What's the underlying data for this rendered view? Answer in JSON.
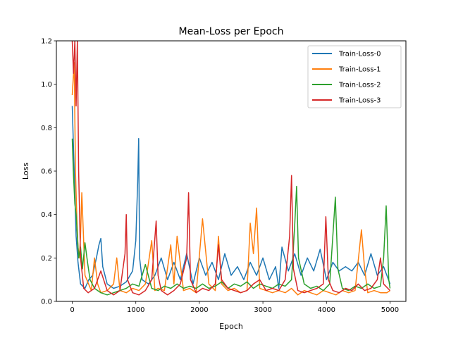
{
  "chart_data": {
    "type": "line",
    "title": "Mean-Loss per Epoch",
    "xlabel": "Epoch",
    "ylabel": "Loss",
    "xlim": [
      -250,
      5250
    ],
    "ylim": [
      0.0,
      1.2
    ],
    "x_ticks": [
      0,
      1000,
      2000,
      3000,
      4000,
      5000
    ],
    "x_tick_labels": [
      "0",
      "1000",
      "2000",
      "3000",
      "4000",
      "5000"
    ],
    "y_ticks": [
      0.0,
      0.2,
      0.4,
      0.6,
      0.8,
      1.0,
      1.2
    ],
    "y_tick_labels": [
      "0.0",
      "0.2",
      "0.4",
      "0.6",
      "0.8",
      "1.0",
      "1.2"
    ],
    "grid": false,
    "legend_position": "top-right",
    "series": [
      {
        "name": "Train-Loss-0",
        "color": "#1f77b4",
        "x": [
          0,
          30,
          60,
          90,
          130,
          200,
          260,
          320,
          380,
          420,
          450,
          480,
          550,
          650,
          750,
          850,
          950,
          1000,
          1030,
          1045,
          1060,
          1100,
          1200,
          1300,
          1400,
          1500,
          1600,
          1700,
          1800,
          1900,
          2000,
          2100,
          2200,
          2300,
          2400,
          2500,
          2600,
          2700,
          2800,
          2900,
          3000,
          3100,
          3200,
          3250,
          3300,
          3400,
          3500,
          3600,
          3700,
          3800,
          3900,
          4000,
          4100,
          4200,
          4300,
          4400,
          4500,
          4600,
          4700,
          4800,
          4900,
          5000
        ],
        "y": [
          0.9,
          0.6,
          0.3,
          0.18,
          0.08,
          0.06,
          0.1,
          0.12,
          0.2,
          0.26,
          0.29,
          0.16,
          0.08,
          0.06,
          0.07,
          0.09,
          0.14,
          0.28,
          0.55,
          0.75,
          0.2,
          0.1,
          0.08,
          0.12,
          0.2,
          0.1,
          0.18,
          0.1,
          0.22,
          0.08,
          0.2,
          0.12,
          0.18,
          0.1,
          0.22,
          0.12,
          0.16,
          0.1,
          0.18,
          0.12,
          0.2,
          0.1,
          0.16,
          0.06,
          0.25,
          0.14,
          0.22,
          0.12,
          0.2,
          0.14,
          0.24,
          0.1,
          0.18,
          0.14,
          0.16,
          0.14,
          0.18,
          0.12,
          0.22,
          0.12,
          0.16,
          0.08
        ]
      },
      {
        "name": "Train-Loss-1",
        "color": "#ff7f0e",
        "x": [
          0,
          30,
          50,
          70,
          90,
          110,
          130,
          150,
          200,
          300,
          350,
          400,
          450,
          550,
          650,
          700,
          750,
          850,
          950,
          1050,
          1150,
          1250,
          1300,
          1350,
          1450,
          1550,
          1600,
          1650,
          1750,
          1850,
          1950,
          2050,
          2150,
          2250,
          2300,
          2350,
          2450,
          2550,
          2650,
          2750,
          2800,
          2850,
          2900,
          2950,
          3050,
          3150,
          3250,
          3350,
          3450,
          3550,
          3650,
          3750,
          3850,
          3950,
          4050,
          4150,
          4250,
          4350,
          4450,
          4550,
          4600,
          4650,
          4750,
          4850,
          4950,
          5000
        ],
        "y": [
          0.95,
          1.1,
          0.6,
          0.4,
          0.25,
          0.2,
          0.3,
          0.5,
          0.12,
          0.05,
          0.2,
          0.08,
          0.04,
          0.05,
          0.08,
          0.2,
          0.05,
          0.04,
          0.06,
          0.05,
          0.08,
          0.28,
          0.05,
          0.06,
          0.05,
          0.26,
          0.08,
          0.3,
          0.05,
          0.06,
          0.04,
          0.38,
          0.08,
          0.05,
          0.3,
          0.08,
          0.05,
          0.06,
          0.04,
          0.05,
          0.36,
          0.22,
          0.43,
          0.06,
          0.05,
          0.04,
          0.05,
          0.04,
          0.06,
          0.03,
          0.05,
          0.04,
          0.03,
          0.05,
          0.04,
          0.03,
          0.05,
          0.04,
          0.05,
          0.33,
          0.15,
          0.04,
          0.05,
          0.04,
          0.04,
          0.05
        ]
      },
      {
        "name": "Train-Loss-2",
        "color": "#2ca02c",
        "x": [
          0,
          20,
          40,
          60,
          80,
          100,
          130,
          160,
          200,
          240,
          280,
          350,
          450,
          550,
          650,
          750,
          850,
          950,
          1050,
          1150,
          1250,
          1350,
          1450,
          1550,
          1650,
          1750,
          1850,
          1950,
          2050,
          2150,
          2250,
          2350,
          2450,
          2550,
          2650,
          2750,
          2850,
          2950,
          3050,
          3150,
          3250,
          3350,
          3450,
          3500,
          3530,
          3560,
          3650,
          3750,
          3850,
          3950,
          4050,
          4100,
          4140,
          4180,
          4250,
          4350,
          4450,
          4550,
          4650,
          4750,
          4850,
          4900,
          4940,
          4980,
          5000
        ],
        "y": [
          0.75,
          0.58,
          0.45,
          0.4,
          0.3,
          0.2,
          0.25,
          0.15,
          0.27,
          0.18,
          0.1,
          0.06,
          0.04,
          0.03,
          0.04,
          0.05,
          0.06,
          0.08,
          0.07,
          0.17,
          0.06,
          0.05,
          0.07,
          0.06,
          0.08,
          0.06,
          0.07,
          0.06,
          0.08,
          0.06,
          0.07,
          0.09,
          0.06,
          0.08,
          0.07,
          0.09,
          0.06,
          0.08,
          0.07,
          0.06,
          0.08,
          0.07,
          0.1,
          0.35,
          0.53,
          0.2,
          0.08,
          0.06,
          0.07,
          0.05,
          0.08,
          0.3,
          0.48,
          0.15,
          0.06,
          0.05,
          0.07,
          0.06,
          0.08,
          0.06,
          0.07,
          0.2,
          0.44,
          0.1,
          0.06
        ]
      },
      {
        "name": "Train-Loss-3",
        "color": "#d62728",
        "x": [
          0,
          20,
          40,
          60,
          80,
          100,
          130,
          180,
          250,
          350,
          450,
          550,
          650,
          750,
          830,
          850,
          870,
          950,
          1050,
          1150,
          1250,
          1320,
          1350,
          1400,
          1500,
          1600,
          1700,
          1800,
          1830,
          1860,
          1950,
          2050,
          2150,
          2250,
          2300,
          2350,
          2450,
          2550,
          2650,
          2750,
          2850,
          2950,
          3050,
          3150,
          3250,
          3350,
          3420,
          3450,
          3480,
          3550,
          3650,
          3750,
          3850,
          3950,
          3990,
          4030,
          4100,
          4200,
          4300,
          4400,
          4500,
          4600,
          4700,
          4800,
          4850,
          4900,
          5000
        ],
        "y": [
          1.2,
          1.05,
          1.2,
          0.9,
          1.2,
          0.6,
          0.2,
          0.06,
          0.04,
          0.06,
          0.14,
          0.05,
          0.03,
          0.05,
          0.22,
          0.4,
          0.1,
          0.04,
          0.03,
          0.05,
          0.1,
          0.37,
          0.12,
          0.05,
          0.03,
          0.05,
          0.08,
          0.2,
          0.5,
          0.1,
          0.04,
          0.06,
          0.05,
          0.08,
          0.26,
          0.1,
          0.06,
          0.05,
          0.04,
          0.05,
          0.08,
          0.1,
          0.05,
          0.06,
          0.05,
          0.1,
          0.3,
          0.58,
          0.15,
          0.05,
          0.04,
          0.05,
          0.06,
          0.08,
          0.39,
          0.1,
          0.05,
          0.04,
          0.06,
          0.05,
          0.08,
          0.05,
          0.06,
          0.1,
          0.2,
          0.08,
          0.05
        ]
      }
    ]
  }
}
